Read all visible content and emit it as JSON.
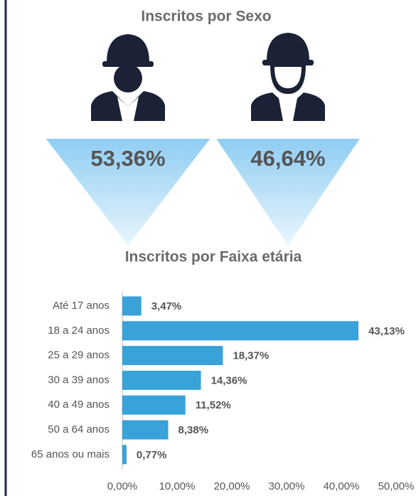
{
  "chart_data": [
    {
      "type": "pictogram",
      "title": "Inscritos por Sexo",
      "categories": [
        null,
        null
      ],
      "values": [
        53.36,
        46.64
      ],
      "value_labels": [
        "53,36%",
        "46,64%"
      ]
    },
    {
      "type": "hbar",
      "title": "Inscritos por Faixa etária",
      "categories": [
        "Até 17 anos",
        "18 a 24 anos",
        "25 a 29 anos",
        "30 a 39 anos",
        "40 a 49 anos",
        "50 a 64 anos",
        "65 anos ou mais"
      ],
      "values": [
        3.47,
        43.13,
        18.37,
        14.36,
        11.52,
        8.38,
        0.77
      ],
      "value_labels": [
        "3,47%",
        "43,13%",
        "18,37%",
        "14,36%",
        "11,52%",
        "8,38%",
        "0,77%"
      ],
      "color": "#39a2d8",
      "xlim": [
        0,
        50
      ],
      "xticks": [
        {
          "value": 0,
          "label": "0,00%"
        },
        {
          "value": 10,
          "label": "10,00%"
        },
        {
          "value": 20,
          "label": "20,00%"
        },
        {
          "value": 30,
          "label": "30,00%"
        },
        {
          "value": 40,
          "label": "40,00%"
        },
        {
          "value": 50,
          "label": "50,00%"
        }
      ]
    }
  ]
}
